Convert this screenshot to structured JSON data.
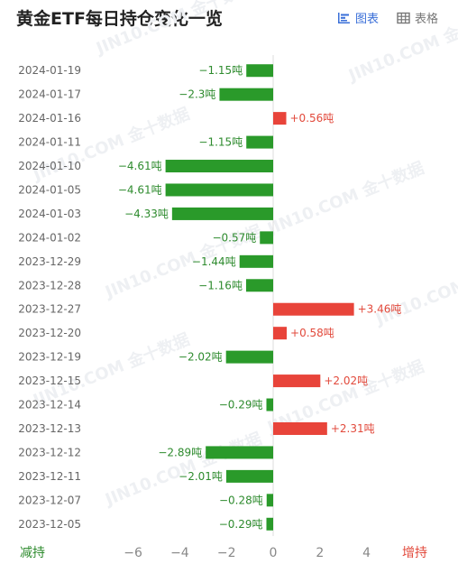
{
  "header": {
    "title": "黄金ETF每日持仓变化一览",
    "chart_view_label": "图表",
    "table_view_label": "表格"
  },
  "watermark": "JIN10.COM 金十数据",
  "footer": {
    "left_label": "减持",
    "right_label": "增持"
  },
  "colors": {
    "positive": "#e8443a",
    "negative": "#2a9a2a",
    "positive_text": "#e24a3c",
    "negative_text": "#2e8b2e",
    "accent": "#3a6fd8"
  },
  "chart_data": {
    "type": "bar",
    "orientation": "horizontal",
    "title": "黄金ETF每日持仓变化一览",
    "unit": "吨",
    "categories": [
      "2024-01-19",
      "2024-01-17",
      "2024-01-16",
      "2024-01-11",
      "2024-01-10",
      "2024-01-05",
      "2024-01-03",
      "2024-01-02",
      "2023-12-29",
      "2023-12-28",
      "2023-12-27",
      "2023-12-20",
      "2023-12-19",
      "2023-12-15",
      "2023-12-14",
      "2023-12-13",
      "2023-12-12",
      "2023-12-11",
      "2023-12-07",
      "2023-12-05"
    ],
    "values": [
      -1.15,
      -2.3,
      0.56,
      -1.15,
      -4.61,
      -4.61,
      -4.33,
      -0.57,
      -1.44,
      -1.16,
      3.46,
      0.58,
      -2.02,
      2.02,
      -0.29,
      2.31,
      -2.89,
      -2.01,
      -0.28,
      -0.29
    ],
    "labels": [
      "−1.15吨",
      "−2.3吨",
      "+0.56吨",
      "−1.15吨",
      "−4.61吨",
      "−4.61吨",
      "−4.33吨",
      "−0.57吨",
      "−1.44吨",
      "−1.16吨",
      "+3.46吨",
      "+0.58吨",
      "−2.02吨",
      "+2.02吨",
      "−0.29吨",
      "+2.31吨",
      "−2.89吨",
      "−2.01吨",
      "−0.28吨",
      "−0.29吨"
    ],
    "xlim": [
      -7,
      7
    ],
    "x_ticks": [
      -6,
      -4,
      -2,
      0,
      2,
      4
    ],
    "x_tick_labels": [
      "−6",
      "−4",
      "−2",
      "0",
      "2",
      "4"
    ],
    "grid": false,
    "legend": "none"
  }
}
